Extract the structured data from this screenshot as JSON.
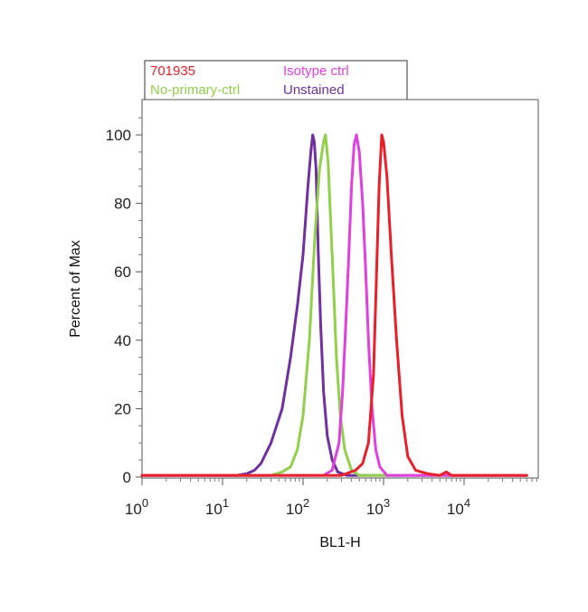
{
  "chart_data": {
    "type": "line",
    "xlabel": "BL1-H",
    "ylabel": "Percent of Max",
    "x_scale": "log",
    "xlim": [
      1,
      60000
    ],
    "ylim": [
      0,
      110
    ],
    "x_ticks": [
      {
        "base": "10",
        "exp": "0",
        "value": 1
      },
      {
        "base": "10",
        "exp": "1",
        "value": 10
      },
      {
        "base": "10",
        "exp": "2",
        "value": 100
      },
      {
        "base": "10",
        "exp": "3",
        "value": 1000
      },
      {
        "base": "10",
        "exp": "4",
        "value": 10000
      }
    ],
    "y_ticks": [
      "0",
      "20",
      "40",
      "60",
      "80",
      "100"
    ],
    "grid": false,
    "legend_position": "top-left above plot",
    "legend": [
      {
        "label": "701935",
        "color": "#e8202a"
      },
      {
        "label": "Isotype ctrl",
        "color": "#e040e0"
      },
      {
        "label": "No-primary-ctrl",
        "color": "#92cf4a"
      },
      {
        "label": "Unstained",
        "color": "#7030a0"
      }
    ],
    "series": [
      {
        "color": "#7030a0",
        "points": [
          [
            1,
            0.5
          ],
          [
            15,
            0.5
          ],
          [
            20,
            1
          ],
          [
            25,
            2
          ],
          [
            30,
            4
          ],
          [
            40,
            10
          ],
          [
            55,
            20
          ],
          [
            70,
            35
          ],
          [
            85,
            50
          ],
          [
            100,
            65
          ],
          [
            115,
            85
          ],
          [
            125,
            95
          ],
          [
            132,
            100
          ],
          [
            138,
            98
          ],
          [
            145,
            90
          ],
          [
            155,
            65
          ],
          [
            165,
            45
          ],
          [
            180,
            25
          ],
          [
            200,
            12
          ],
          [
            230,
            5
          ],
          [
            270,
            1.5
          ],
          [
            350,
            0.5
          ],
          [
            60000,
            0.5
          ]
        ]
      },
      {
        "color": "#92cf4a",
        "points": [
          [
            1,
            0.5
          ],
          [
            40,
            0.5
          ],
          [
            55,
            1.5
          ],
          [
            70,
            3
          ],
          [
            85,
            8
          ],
          [
            100,
            18
          ],
          [
            120,
            40
          ],
          [
            140,
            70
          ],
          [
            160,
            90
          ],
          [
            180,
            98
          ],
          [
            190,
            100
          ],
          [
            205,
            92
          ],
          [
            220,
            75
          ],
          [
            240,
            55
          ],
          [
            260,
            35
          ],
          [
            290,
            18
          ],
          [
            330,
            8
          ],
          [
            400,
            2
          ],
          [
            500,
            0.5
          ],
          [
            60000,
            0.5
          ]
        ]
      },
      {
        "color": "#e040e0",
        "points": [
          [
            1,
            0.5
          ],
          [
            180,
            0.5
          ],
          [
            230,
            2
          ],
          [
            280,
            10
          ],
          [
            310,
            25
          ],
          [
            340,
            45
          ],
          [
            370,
            65
          ],
          [
            400,
            85
          ],
          [
            430,
            97
          ],
          [
            460,
            100
          ],
          [
            500,
            95
          ],
          [
            550,
            80
          ],
          [
            600,
            60
          ],
          [
            650,
            40
          ],
          [
            720,
            20
          ],
          [
            800,
            8
          ],
          [
            900,
            3
          ],
          [
            1100,
            0.5
          ],
          [
            60000,
            0.5
          ]
        ]
      },
      {
        "color": "#e8202a",
        "points": [
          [
            1,
            0.5
          ],
          [
            300,
            0.5
          ],
          [
            450,
            2
          ],
          [
            550,
            4
          ],
          [
            650,
            10
          ],
          [
            750,
            30
          ],
          [
            820,
            60
          ],
          [
            880,
            85
          ],
          [
            950,
            100
          ],
          [
            1000,
            98
          ],
          [
            1100,
            88
          ],
          [
            1250,
            65
          ],
          [
            1450,
            40
          ],
          [
            1700,
            18
          ],
          [
            2000,
            6
          ],
          [
            2500,
            2
          ],
          [
            3500,
            1
          ],
          [
            5000,
            0.5
          ],
          [
            6000,
            1.5
          ],
          [
            7000,
            0.5
          ],
          [
            60000,
            0.5
          ]
        ]
      }
    ]
  }
}
